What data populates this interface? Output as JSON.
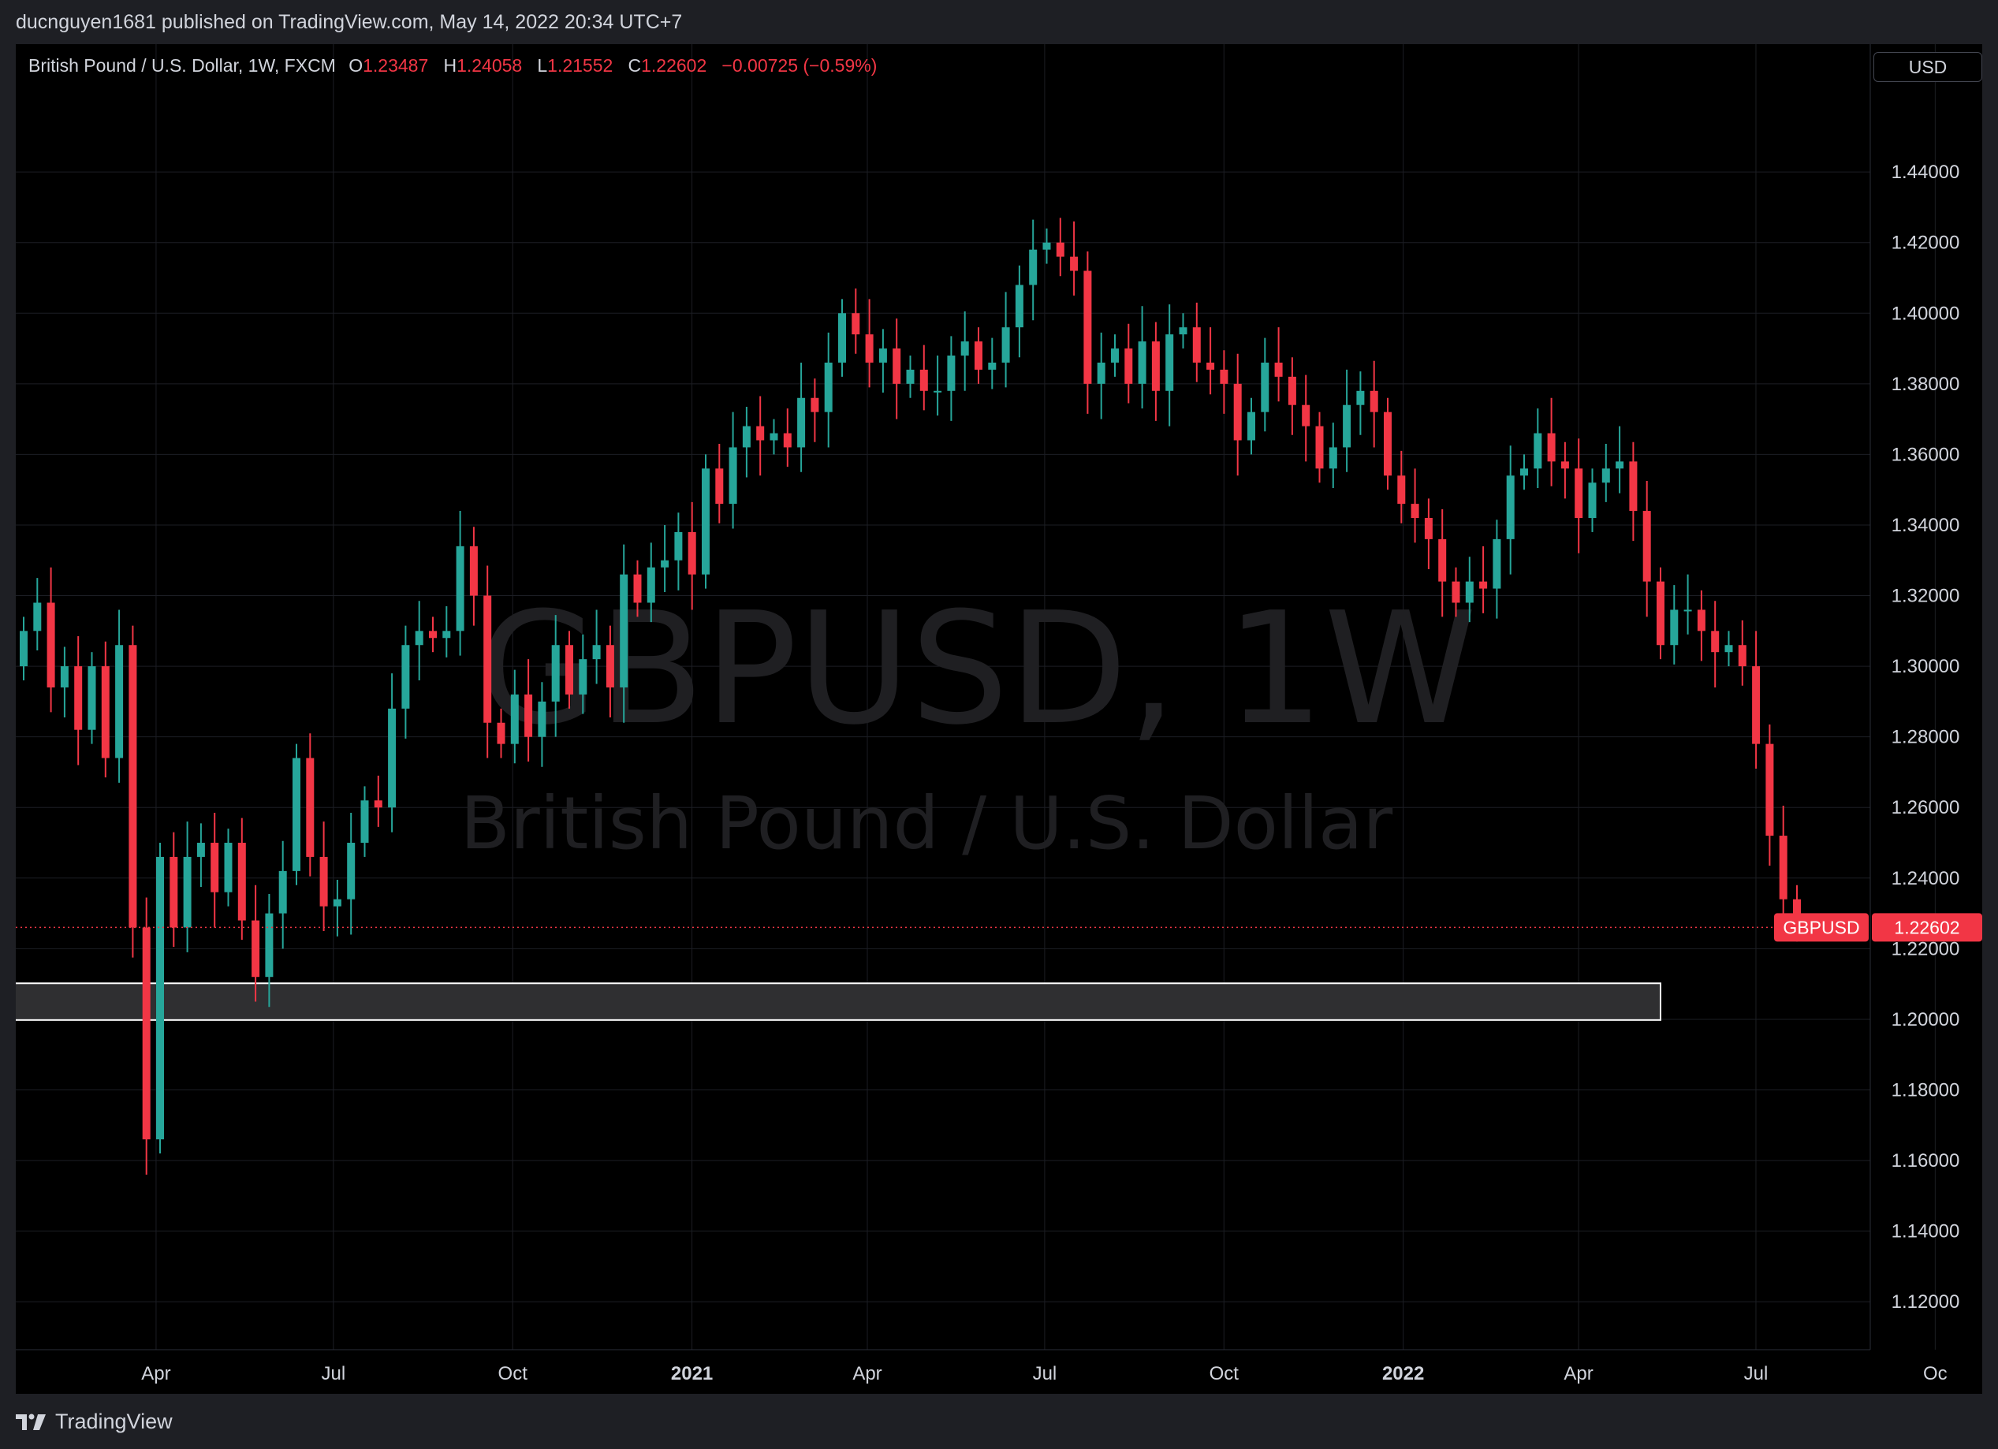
{
  "header": {
    "publish_text": "ducnguyen1681 published on TradingView.com, May 14, 2022 20:34 UTC+7"
  },
  "legend": {
    "symbol_line": "British Pound / U.S. Dollar, 1W, FXCM",
    "open_label": "O",
    "open_value": "1.23487",
    "high_label": "H",
    "high_value": "1.24058",
    "low_label": "L",
    "low_value": "1.21552",
    "close_label": "C",
    "close_value": "1.22602",
    "change": "−0.00725 (−0.59%)"
  },
  "currency_button": "USD",
  "watermark": {
    "symbol": "GBPUSD, 1W",
    "name": "British Pound / U.S. Dollar"
  },
  "price_label": {
    "symbol": "GBPUSD",
    "value": "1.22602"
  },
  "footer": {
    "brand": "TradingView"
  },
  "colors": {
    "up": "#26a69a",
    "down": "#f23645",
    "background": "#000000",
    "grid": "#1c1e24",
    "zone_fill": "#2f2f31",
    "zone_border": "#ffffff"
  },
  "chart_data": {
    "type": "candlestick",
    "title": "GBPUSD, 1W",
    "subtitle": "British Pound / U.S. Dollar",
    "y_axis": {
      "min": 1.11,
      "max": 1.457,
      "ticks": [
        "1.12000",
        "1.14000",
        "1.16000",
        "1.18000",
        "1.20000",
        "1.22000",
        "1.24000",
        "1.26000",
        "1.28000",
        "1.30000",
        "1.32000",
        "1.34000",
        "1.36000",
        "1.38000",
        "1.40000",
        "1.42000",
        "1.44000"
      ]
    },
    "x_axis": {
      "start": "2020-01-20",
      "ticks": [
        {
          "date": "2020-04-01",
          "label": "Apr",
          "bold": false
        },
        {
          "date": "2020-07-01",
          "label": "Jul",
          "bold": false
        },
        {
          "date": "2020-10-01",
          "label": "Oct",
          "bold": false
        },
        {
          "date": "2021-01-01",
          "label": "2021",
          "bold": true
        },
        {
          "date": "2021-04-01",
          "label": "Apr",
          "bold": false
        },
        {
          "date": "2021-07-01",
          "label": "Jul",
          "bold": false
        },
        {
          "date": "2021-10-01",
          "label": "Oct",
          "bold": false
        },
        {
          "date": "2022-01-01",
          "label": "2022",
          "bold": true
        },
        {
          "date": "2022-04-01",
          "label": "Apr",
          "bold": false
        },
        {
          "date": "2022-07-01",
          "label": "Jul",
          "bold": false
        },
        {
          "date": "2022-10-01",
          "label": "Oc",
          "bold": false
        }
      ]
    },
    "interval": "1W",
    "closes": [
      1.31,
      1.318,
      1.294,
      1.3,
      1.282,
      1.3,
      1.274,
      1.306,
      1.226,
      1.166,
      1.246,
      1.226,
      1.246,
      1.25,
      1.236,
      1.25,
      1.228,
      1.212,
      1.23,
      1.242,
      1.274,
      1.246,
      1.232,
      1.234,
      1.25,
      1.262,
      1.26,
      1.288,
      1.306,
      1.31,
      1.308,
      1.31,
      1.334,
      1.32,
      1.284,
      1.278,
      1.292,
      1.28,
      1.29,
      1.306,
      1.292,
      1.302,
      1.306,
      1.294,
      1.326,
      1.318,
      1.328,
      1.33,
      1.338,
      1.326,
      1.356,
      1.346,
      1.362,
      1.368,
      1.364,
      1.366,
      1.362,
      1.376,
      1.372,
      1.386,
      1.4,
      1.394,
      1.386,
      1.39,
      1.38,
      1.384,
      1.378,
      1.378,
      1.388,
      1.392,
      1.384,
      1.386,
      1.396,
      1.408,
      1.418,
      1.42,
      1.416,
      1.412,
      1.38,
      1.386,
      1.39,
      1.38,
      1.392,
      1.378,
      1.394,
      1.396,
      1.386,
      1.384,
      1.38,
      1.364,
      1.372,
      1.386,
      1.382,
      1.374,
      1.368,
      1.356,
      1.362,
      1.374,
      1.378,
      1.372,
      1.354,
      1.346,
      1.342,
      1.336,
      1.324,
      1.318,
      1.324,
      1.322,
      1.336,
      1.354,
      1.356,
      1.366,
      1.358,
      1.356,
      1.342,
      1.352,
      1.356,
      1.358,
      1.344,
      1.324,
      1.306,
      1.316,
      1.316,
      1.31,
      1.304,
      1.306,
      1.3,
      1.278,
      1.252,
      1.234,
      1.22602
    ]
  }
}
